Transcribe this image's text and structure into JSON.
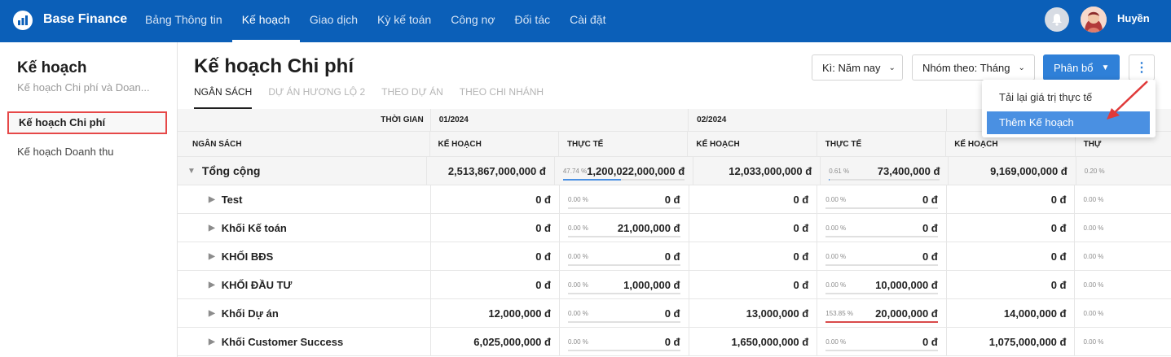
{
  "app": {
    "brand": "Base Finance",
    "user": "Huyền"
  },
  "nav": [
    "Bảng Thông tin",
    "Kế hoạch",
    "Giao dịch",
    "Kỳ kế toán",
    "Công nợ",
    "Đối tác",
    "Cài đặt"
  ],
  "nav_active": "Kế hoạch",
  "sidebar": {
    "title": "Kế hoạch",
    "subtitle": "Kế hoạch Chi phí và Doan...",
    "items": [
      "Kế hoạch Chi phí",
      "Kế hoạch Doanh thu"
    ]
  },
  "page": {
    "title": "Kế hoạch Chi phí",
    "tabs": [
      "NGÂN SÁCH",
      "DỰ ÁN HƯƠNG LỘ 2",
      "THEO DỰ ÁN",
      "THEO CHI NHÁNH"
    ]
  },
  "toolbar": {
    "period": "Kì: Năm nay",
    "group": "Nhóm theo: Tháng",
    "allocate": "Phân bổ",
    "more_icon": "more-vertical-icon"
  },
  "dropdown": [
    "Tải lại giá trị thực tế",
    "Thêm Kế hoạch"
  ],
  "table": {
    "time_label": "THỜI GIAN",
    "months": [
      "01/2024",
      "02/2024"
    ],
    "header": {
      "name": "NGÂN SÁCH",
      "cols": [
        "KẾ HOẠCH",
        "THỰC TẾ",
        "KẾ HOẠCH",
        "THỰC TẾ",
        "KẾ HOẠCH",
        "THỰ"
      ]
    },
    "rows": [
      {
        "name": "Tổng cộng",
        "expanded": true,
        "m1_plan": "2,513,867,000,000 đ",
        "m1_pct": "47.74 %",
        "m1_pct_value": 47.74,
        "m1_act": "1,200,022,000,000 đ",
        "m2_plan": "12,033,000,000 đ",
        "m2_pct": "0.61 %",
        "m2_pct_value": 0.61,
        "m2_act": "73,400,000 đ",
        "m3_plan": "9,169,000,000 đ",
        "m3_pct": "0.20 %"
      },
      {
        "name": "Test",
        "m1_plan": "0 đ",
        "m1_pct": "0.00 %",
        "m1_pct_value": 0,
        "m1_act": "0 đ",
        "m2_plan": "0 đ",
        "m2_pct": "0.00 %",
        "m2_pct_value": 0,
        "m2_act": "0 đ",
        "m3_plan": "0 đ",
        "m3_pct": "0.00 %"
      },
      {
        "name": "Khối Kế toán",
        "m1_plan": "0 đ",
        "m1_pct": "0.00 %",
        "m1_pct_value": 0,
        "m1_act": "21,000,000 đ",
        "m2_plan": "0 đ",
        "m2_pct": "0.00 %",
        "m2_pct_value": 0,
        "m2_act": "0 đ",
        "m3_plan": "0 đ",
        "m3_pct": "0.00 %"
      },
      {
        "name": "KHỐI BĐS",
        "m1_plan": "0 đ",
        "m1_pct": "0.00 %",
        "m1_pct_value": 0,
        "m1_act": "0 đ",
        "m2_plan": "0 đ",
        "m2_pct": "0.00 %",
        "m2_pct_value": 0,
        "m2_act": "0 đ",
        "m3_plan": "0 đ",
        "m3_pct": "0.00 %"
      },
      {
        "name": "KHỐI ĐẦU TƯ",
        "m1_plan": "0 đ",
        "m1_pct": "0.00 %",
        "m1_pct_value": 0,
        "m1_act": "1,000,000 đ",
        "m2_plan": "0 đ",
        "m2_pct": "0.00 %",
        "m2_pct_value": 0,
        "m2_act": "10,000,000 đ",
        "m3_plan": "0 đ",
        "m3_pct": "0.00 %"
      },
      {
        "name": "Khối Dự án",
        "m1_plan": "12,000,000 đ",
        "m1_pct": "0.00 %",
        "m1_pct_value": 0,
        "m1_act": "0 đ",
        "m2_plan": "13,000,000 đ",
        "m2_pct": "153.85 %",
        "m2_pct_value": 153.85,
        "m2_act": "20,000,000 đ",
        "m3_plan": "14,000,000 đ",
        "m3_pct": "0.00 %"
      },
      {
        "name": "Khối Customer Success",
        "m1_plan": "6,025,000,000 đ",
        "m1_pct": "0.00 %",
        "m1_pct_value": 0,
        "m1_act": "0 đ",
        "m2_plan": "1,650,000,000 đ",
        "m2_pct": "0.00 %",
        "m2_pct_value": 0,
        "m2_act": "0 đ",
        "m3_plan": "1,075,000,000 đ",
        "m3_pct": "0.00 %"
      }
    ]
  },
  "colors": {
    "topbar": "#0b5fb8",
    "primary": "#2f80d8",
    "highlight_border": "#e64848",
    "over_budget": "#d94a4a"
  }
}
